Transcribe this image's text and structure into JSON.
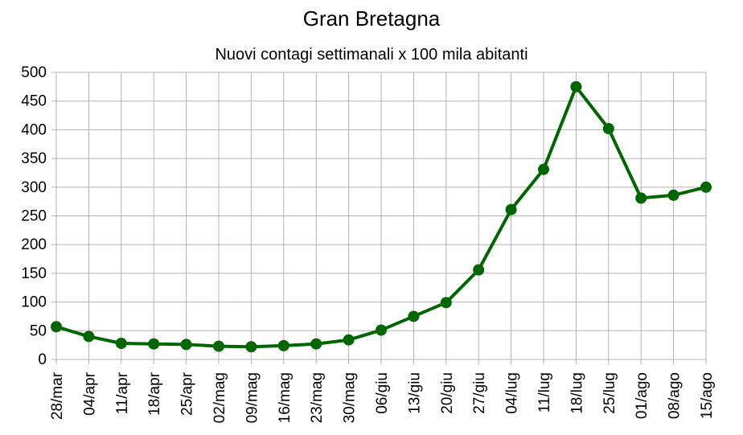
{
  "chart_data": {
    "type": "line",
    "title": "Gran Bretagna",
    "subtitle": "Nuovi contagi settimanali x 100 mila abitanti",
    "xlabel": "",
    "ylabel": "",
    "categories": [
      "28/mar",
      "04/apr",
      "11/apr",
      "18/apr",
      "25/apr",
      "02/mag",
      "09/mag",
      "16/mag",
      "23/mag",
      "30/mag",
      "06/giu",
      "13/giu",
      "20/giu",
      "27/giu",
      "04/lug",
      "11/lug",
      "18/lug",
      "25/lug",
      "01/ago",
      "08/ago",
      "15/ago"
    ],
    "series": [
      {
        "values": [
          57,
          40,
          28,
          27,
          26,
          23,
          22,
          24,
          27,
          34,
          51,
          75,
          99,
          156,
          261,
          331,
          475,
          402,
          281,
          286,
          300
        ]
      }
    ],
    "ylim": [
      0,
      500
    ],
    "yticks": [
      0,
      50,
      100,
      150,
      200,
      250,
      300,
      350,
      400,
      450,
      500
    ],
    "grid": true,
    "legend": "none",
    "colors": {
      "line": "#006600",
      "grid": "#b3b3b3",
      "axis": "#b3b3b3"
    }
  }
}
